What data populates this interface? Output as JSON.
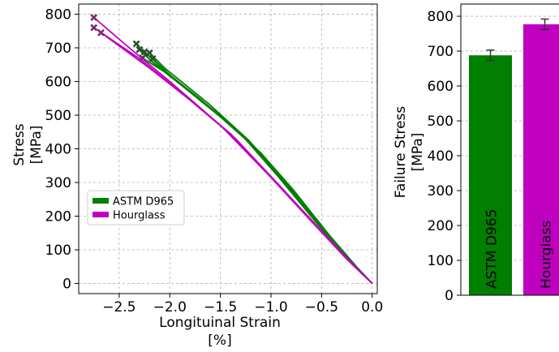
{
  "colors": {
    "astm": "#007f00",
    "hourglass": "#bf00bf"
  },
  "chart_data": [
    {
      "type": "line",
      "xlabel": "Longituinal Strain\n[%]",
      "ylabel": "Stress\n[MPa]",
      "xlim": [
        -2.9,
        0.05
      ],
      "ylim": [
        -30,
        830
      ],
      "xticks": [
        -2.5,
        -2.0,
        -1.5,
        -1.0,
        -0.5,
        0.0
      ],
      "xtick_labels": [
        "−2.5",
        "−2.0",
        "−1.5",
        "−1.0",
        "−0.5",
        "0.0"
      ],
      "yticks": [
        0,
        100,
        200,
        300,
        400,
        500,
        600,
        700,
        800
      ],
      "ytick_labels": [
        "0",
        "100",
        "200",
        "300",
        "400",
        "500",
        "600",
        "700",
        "800"
      ],
      "grid": true,
      "legend_position": "center-left",
      "series": [
        {
          "name": "ASTM D965",
          "color_key": "astm",
          "curves": [
            [
              [
                -2.33,
                712
              ],
              [
                -2.2,
                665
              ],
              [
                -1.75,
                560
              ],
              [
                -1.3,
                445
              ],
              [
                -0.95,
                325
              ],
              [
                -0.55,
                180
              ],
              [
                -0.25,
                75
              ],
              [
                0.0,
                0
              ]
            ],
            [
              [
                -2.3,
                695
              ],
              [
                -2.15,
                652
              ],
              [
                -1.7,
                548
              ],
              [
                -1.25,
                432
              ],
              [
                -0.9,
                312
              ],
              [
                -0.5,
                168
              ],
              [
                -0.22,
                68
              ],
              [
                0.0,
                0
              ]
            ],
            [
              [
                -2.27,
                670
              ],
              [
                -2.05,
                628
              ],
              [
                -1.6,
                522
              ],
              [
                -1.2,
                418
              ],
              [
                -0.85,
                300
              ],
              [
                -0.48,
                160
              ],
              [
                -0.2,
                62
              ],
              [
                0.0,
                0
              ]
            ],
            [
              [
                -2.25,
                688
              ],
              [
                -2.0,
                620
              ],
              [
                -1.55,
                510
              ],
              [
                -1.15,
                402
              ],
              [
                -0.82,
                290
              ],
              [
                -0.45,
                150
              ],
              [
                -0.18,
                55
              ],
              [
                0.0,
                0
              ]
            ],
            [
              [
                -2.17,
                668
              ],
              [
                -1.95,
                605
              ],
              [
                -1.5,
                495
              ],
              [
                -1.1,
                388
              ],
              [
                -0.78,
                278
              ],
              [
                -0.42,
                142
              ],
              [
                -0.15,
                48
              ],
              [
                0.0,
                0
              ]
            ],
            [
              [
                -2.2,
                685
              ],
              [
                -2.05,
                640
              ],
              [
                -1.62,
                535
              ],
              [
                -1.22,
                425
              ],
              [
                -0.88,
                305
              ],
              [
                -0.5,
                165
              ],
              [
                -0.2,
                58
              ],
              [
                0.0,
                0
              ]
            ]
          ],
          "failure_points": [
            [
              -2.33,
              712
            ],
            [
              -2.3,
              695
            ],
            [
              -2.27,
              670
            ],
            [
              -2.25,
              688
            ],
            [
              -2.17,
              668
            ],
            [
              -2.2,
              685
            ]
          ]
        },
        {
          "name": "Hourglass",
          "color_key": "hourglass",
          "curves": [
            [
              [
                -2.75,
                790
              ],
              [
                -2.4,
                700
              ],
              [
                -2.0,
                600
              ],
              [
                -1.5,
                470
              ],
              [
                -1.0,
                315
              ],
              [
                -0.55,
                168
              ],
              [
                -0.25,
                72
              ],
              [
                0.0,
                0
              ]
            ],
            [
              [
                -2.75,
                760
              ],
              [
                -2.3,
                668
              ],
              [
                -1.9,
                570
              ],
              [
                -1.4,
                445
              ],
              [
                -0.95,
                300
              ],
              [
                -0.5,
                155
              ],
              [
                -0.2,
                60
              ],
              [
                0.0,
                0
              ]
            ],
            [
              [
                -2.68,
                745
              ],
              [
                -2.2,
                640
              ],
              [
                -1.8,
                545
              ],
              [
                -1.35,
                430
              ],
              [
                -0.92,
                292
              ],
              [
                -0.48,
                150
              ],
              [
                -0.18,
                52
              ],
              [
                0.0,
                0
              ]
            ]
          ],
          "failure_points": [
            [
              -2.75,
              790
            ],
            [
              -2.75,
              760
            ],
            [
              -2.68,
              745
            ]
          ]
        }
      ]
    },
    {
      "type": "bar",
      "ylabel": "Failure Stress\n[MPa]",
      "ylim": [
        0,
        835
      ],
      "yticks": [
        0,
        100,
        200,
        300,
        400,
        500,
        600,
        700,
        800
      ],
      "ytick_labels": [
        "0",
        "100",
        "200",
        "300",
        "400",
        "500",
        "600",
        "700",
        "800"
      ],
      "grid": true,
      "categories": [
        "ASTM D965",
        "Hourglass"
      ],
      "values": [
        688,
        777
      ],
      "errors": [
        15,
        15
      ],
      "color_keys": [
        "astm",
        "hourglass"
      ]
    }
  ]
}
